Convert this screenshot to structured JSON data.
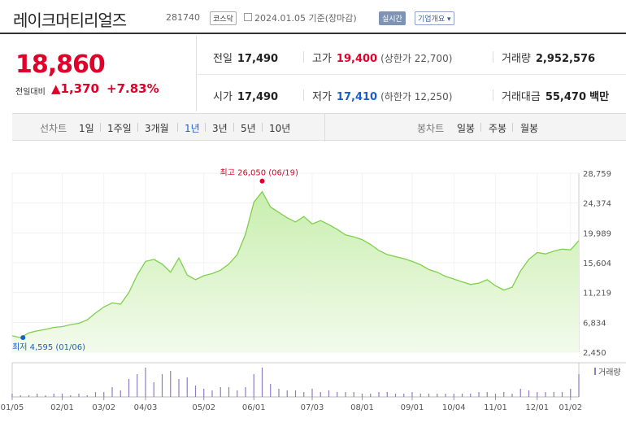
{
  "header": {
    "name": "레이크머티리얼즈",
    "code": "281740",
    "market": "코스닥",
    "date": "2024.01.05 기준(장마감)",
    "live_label": "실시간",
    "company_label": "기업개요 ▾"
  },
  "price": {
    "current": "18,860",
    "change_label": "전일대비",
    "change": "▲1,370",
    "change_pct": "+7.83%"
  },
  "info": {
    "prev_label": "전일",
    "prev": "17,490",
    "high_label": "고가",
    "high": "19,400",
    "upper_limit": "(상한가 22,700)",
    "volume_label": "거래량",
    "volume": "2,952,576",
    "open_label": "시가",
    "open": "17,490",
    "low_label": "저가",
    "low": "17,410",
    "lower_limit": "(하한가 12,250)",
    "amount_label": "거래대금",
    "amount": "55,470",
    "amount_unit": "백만"
  },
  "tabs": {
    "line_label": "선차트",
    "periods": [
      "1일",
      "1주일",
      "3개월",
      "1년",
      "3년",
      "5년",
      "10년"
    ],
    "active_period": "1년",
    "candle_label": "봉차트",
    "candles": [
      "일봉",
      "주봉",
      "월봉"
    ]
  },
  "colors": {
    "up": "#e0002a",
    "down": "#1a5fc9",
    "line": "#7ed04a",
    "fill": "#c8eeae",
    "volume": "#8e7cc3"
  },
  "chart_data": {
    "type": "area",
    "x": [
      "01/05",
      "01/06",
      "01/12",
      "01/20",
      "01/31",
      "02/10",
      "02/20",
      "02/28",
      "03/02",
      "03/08",
      "03/15",
      "03/22",
      "03/29",
      "04/03",
      "04/06",
      "04/10",
      "04/14",
      "04/18",
      "04/21",
      "04/25",
      "04/28",
      "05/02",
      "05/06",
      "05/10",
      "05/15",
      "05/22",
      "05/29",
      "06/01",
      "06/05",
      "06/09",
      "06/13",
      "06/16",
      "06/19",
      "06/22",
      "06/26",
      "06/29",
      "07/03",
      "07/07",
      "07/12",
      "07/17",
      "07/21",
      "07/27",
      "08/01",
      "08/08",
      "08/15",
      "08/22",
      "08/29",
      "09/01",
      "09/08",
      "09/15",
      "09/22",
      "09/29",
      "10/04",
      "10/11",
      "10/18",
      "10/25",
      "11/01",
      "11/06",
      "11/10",
      "11/17",
      "11/24",
      "12/01",
      "12/05",
      "12/10",
      "12/15",
      "12/21",
      "12/26",
      "01/02",
      "01/05"
    ],
    "y": [
      4850,
      4595,
      5300,
      5600,
      5800,
      6100,
      6200,
      6500,
      6700,
      7200,
      8200,
      9100,
      9700,
      9500,
      11200,
      13800,
      15800,
      16100,
      15400,
      14200,
      16300,
      13800,
      13100,
      13700,
      14000,
      14500,
      15400,
      16800,
      19800,
      24500,
      26050,
      23800,
      23000,
      22200,
      21600,
      22400,
      21300,
      21800,
      21200,
      20500,
      19700,
      19400,
      19000,
      18300,
      17400,
      16800,
      16500,
      16200,
      15800,
      15300,
      14600,
      14200,
      13600,
      13200,
      12800,
      12400,
      12600,
      13100,
      12200,
      11600,
      12000,
      14400,
      16100,
      17100,
      16900,
      17300,
      17600,
      17490,
      18860
    ],
    "max_label": "최고 26,050 (06/19)",
    "min_label": "최저 4,595 (01/06)",
    "y_ticks": [
      "28,759",
      "24,374",
      "19,989",
      "15,604",
      "11,219",
      "6,834",
      "2,450"
    ],
    "y_tick_values": [
      28759,
      24374,
      19989,
      15604,
      11219,
      6834,
      2450
    ],
    "ylim": [
      2450,
      28759
    ],
    "x_ticks": [
      "01/05",
      "02/01",
      "03/02",
      "04/03",
      "05/02",
      "06/01",
      "07/03",
      "08/01",
      "09/01",
      "10/04",
      "11/01",
      "12/01",
      "01/02"
    ],
    "volume_label": "거래량",
    "volume": [
      2,
      1,
      1,
      2,
      1,
      2,
      2,
      1,
      2,
      1,
      3,
      3,
      6,
      4,
      11,
      14,
      18,
      9,
      14,
      16,
      11,
      12,
      7,
      5,
      4,
      6,
      6,
      4,
      6,
      14,
      18,
      8,
      5,
      4,
      4,
      3,
      5,
      3,
      4,
      3,
      3,
      3,
      2,
      2,
      3,
      3,
      2,
      2,
      3,
      2,
      2,
      2,
      2,
      2,
      2,
      2,
      3,
      3,
      2,
      3,
      2,
      5,
      4,
      3,
      3,
      3,
      3,
      5,
      14
    ]
  }
}
